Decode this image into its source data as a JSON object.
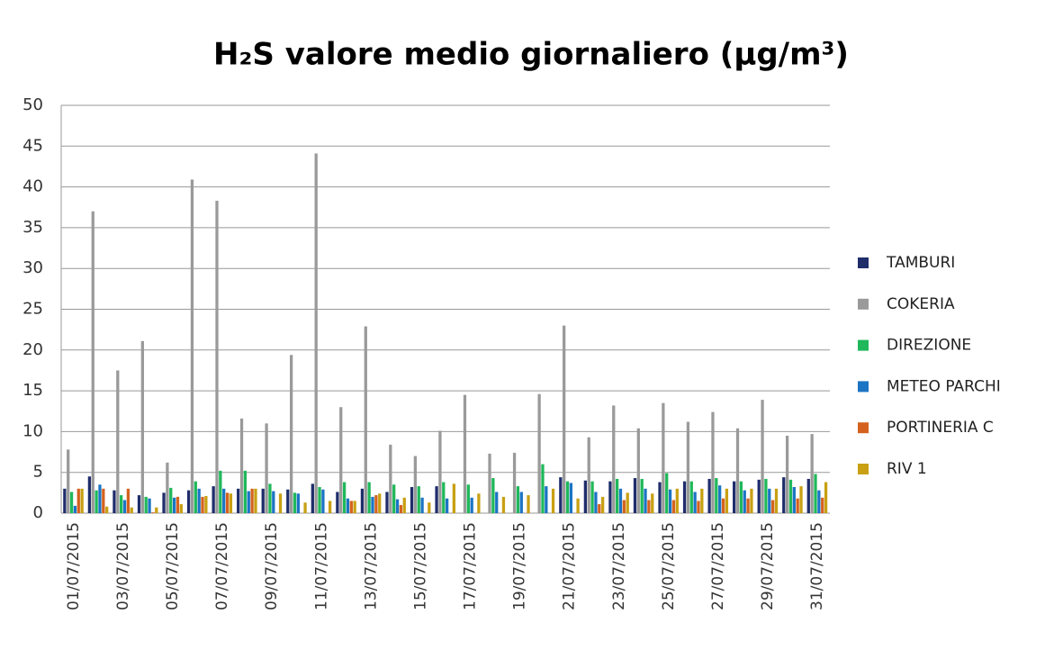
{
  "chart_data": {
    "type": "bar",
    "title": "H₂S valore medio giornaliero (µg/m³)",
    "categories": [
      "01/07/2015",
      null,
      "03/07/2015",
      null,
      "05/07/2015",
      null,
      "07/07/2015",
      null,
      "09/07/2015",
      null,
      "11/07/2015",
      null,
      "13/07/2015",
      null,
      "15/07/2015",
      null,
      "17/07/2015",
      null,
      "19/07/2015",
      null,
      "21/07/2015",
      null,
      "23/07/2015",
      null,
      "25/07/2015",
      null,
      "27/07/2015",
      null,
      "29/07/2015",
      null,
      "31/07/2015"
    ],
    "series": [
      {
        "name": "TAMBURI",
        "color": "#1f2d6b",
        "values": [
          3,
          4.5,
          2.8,
          2.2,
          2.5,
          2.8,
          3.3,
          3,
          3,
          2.9,
          3.6,
          2.6,
          3,
          2.6,
          3.2,
          3.3,
          null,
          null,
          null,
          null,
          4.4,
          4,
          3.9,
          4.3,
          3.8,
          3.9,
          4.2,
          3.9,
          4.1,
          4.4,
          4.2
        ]
      },
      {
        "name": "COKERIA",
        "color": "#9a9a9a",
        "values": [
          7.8,
          37,
          17.5,
          21.1,
          6.2,
          40.9,
          38.3,
          11.6,
          11,
          19.4,
          44.1,
          13,
          22.9,
          8.4,
          7,
          10.1,
          14.5,
          7.3,
          7.4,
          14.6,
          23,
          9.3,
          13.2,
          10.4,
          13.5,
          11.2,
          12.4,
          10.4,
          13.9,
          9.5,
          9.7
        ]
      },
      {
        "name": "DIREZIONE",
        "color": "#1fb85a",
        "values": [
          2.6,
          2.8,
          2.2,
          2,
          3.1,
          3.9,
          5.2,
          5.2,
          3.6,
          2.5,
          3.2,
          3.8,
          3.8,
          3.5,
          3.3,
          3.8,
          3.5,
          4.3,
          3.3,
          6,
          3.9,
          3.9,
          4.2,
          4.2,
          4.9,
          3.9,
          4.3,
          3.9,
          4.2,
          4.1,
          4.8
        ]
      },
      {
        "name": "METEO PARCHI",
        "color": "#1b74c4",
        "values": [
          0.9,
          3.5,
          1.6,
          1.8,
          1.9,
          3,
          3,
          2.7,
          2.7,
          2.4,
          2.9,
          1.8,
          2,
          1.7,
          1.9,
          1.8,
          1.9,
          2.6,
          2.6,
          3.3,
          3.7,
          2.6,
          3,
          3,
          2.9,
          2.6,
          3.4,
          2.8,
          3,
          3.2,
          2.8
        ]
      },
      {
        "name": "PORTINERIA C",
        "color": "#d4621e",
        "values": [
          3,
          3,
          3,
          0.1,
          2,
          2,
          2.5,
          3,
          null,
          null,
          null,
          1.5,
          2.2,
          1,
          null,
          null,
          null,
          null,
          null,
          null,
          null,
          1.1,
          1.6,
          1.6,
          1.6,
          1.5,
          1.8,
          1.8,
          1.6,
          1.8,
          1.9
        ]
      },
      {
        "name": "RIV 1",
        "color": "#c8a012",
        "values": [
          3,
          0.8,
          0.7,
          0.7,
          1.1,
          2.1,
          2.4,
          3,
          2.4,
          1.3,
          1.5,
          1.5,
          2.4,
          1.9,
          1.3,
          3.6,
          2.4,
          2,
          2.2,
          3,
          1.8,
          2,
          2.5,
          2.4,
          3,
          3,
          3,
          3,
          3,
          3.3,
          3.8
        ]
      }
    ],
    "ylim": [
      0,
      50
    ],
    "yticks": [
      0,
      5,
      10,
      15,
      20,
      25,
      30,
      35,
      40,
      45,
      50
    ],
    "grid": true,
    "legend": "right"
  }
}
